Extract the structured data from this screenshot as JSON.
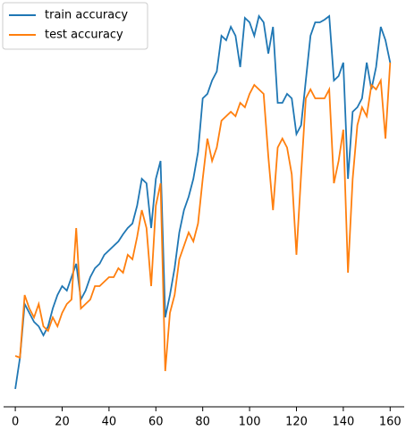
{
  "chart_data": {
    "type": "line",
    "x": [
      0,
      2,
      4,
      6,
      8,
      10,
      12,
      14,
      16,
      18,
      20,
      22,
      24,
      26,
      28,
      30,
      32,
      34,
      36,
      38,
      40,
      42,
      44,
      46,
      48,
      50,
      52,
      54,
      56,
      58,
      60,
      62,
      64,
      66,
      68,
      70,
      72,
      74,
      76,
      78,
      80,
      82,
      84,
      86,
      88,
      90,
      92,
      94,
      96,
      98,
      100,
      102,
      104,
      106,
      108,
      110,
      112,
      114,
      116,
      118,
      120,
      122,
      124,
      126,
      128,
      130,
      132,
      134,
      136,
      138,
      140,
      142,
      144,
      146,
      148,
      150,
      152,
      154,
      156,
      158,
      160
    ],
    "series": [
      {
        "name": "train accuracy",
        "color": "#1f77b4",
        "values": [
          10,
          45,
          105,
          95,
          85,
          80,
          70,
          80,
          100,
          115,
          125,
          120,
          135,
          150,
          110,
          120,
          135,
          145,
          150,
          160,
          165,
          170,
          175,
          183,
          190,
          195,
          215,
          245,
          240,
          190,
          245,
          265,
          90,
          115,
          145,
          185,
          210,
          225,
          245,
          275,
          335,
          340,
          355,
          365,
          405,
          400,
          415,
          405,
          370,
          425,
          420,
          405,
          427,
          420,
          385,
          415,
          330,
          330,
          340,
          335,
          295,
          305,
          355,
          405,
          420,
          420,
          423,
          427,
          355,
          360,
          375,
          245,
          320,
          325,
          335,
          375,
          345,
          370,
          415,
          400,
          375
        ]
      },
      {
        "name": "test accuracy",
        "color": "#ff7f0e",
        "values": [
          47,
          45,
          115,
          100,
          90,
          105,
          80,
          75,
          90,
          80,
          95,
          105,
          110,
          190,
          100,
          105,
          110,
          125,
          125,
          130,
          135,
          135,
          145,
          140,
          160,
          155,
          180,
          210,
          190,
          125,
          215,
          240,
          30,
          95,
          115,
          155,
          170,
          185,
          175,
          195,
          245,
          290,
          265,
          280,
          310,
          315,
          320,
          315,
          330,
          325,
          340,
          350,
          345,
          340,
          270,
          210,
          280,
          290,
          280,
          250,
          160,
          250,
          335,
          345,
          335,
          335,
          335,
          345,
          240,
          265,
          300,
          140,
          245,
          305,
          325,
          315,
          350,
          345,
          355,
          290,
          375
        ]
      }
    ],
    "xlim": [
      -5,
      166
    ],
    "xticks": [
      0,
      20,
      40,
      60,
      80,
      100,
      120,
      140,
      160
    ],
    "ylim": [
      0,
      430
    ],
    "legend": "upper left",
    "grid": false
  }
}
